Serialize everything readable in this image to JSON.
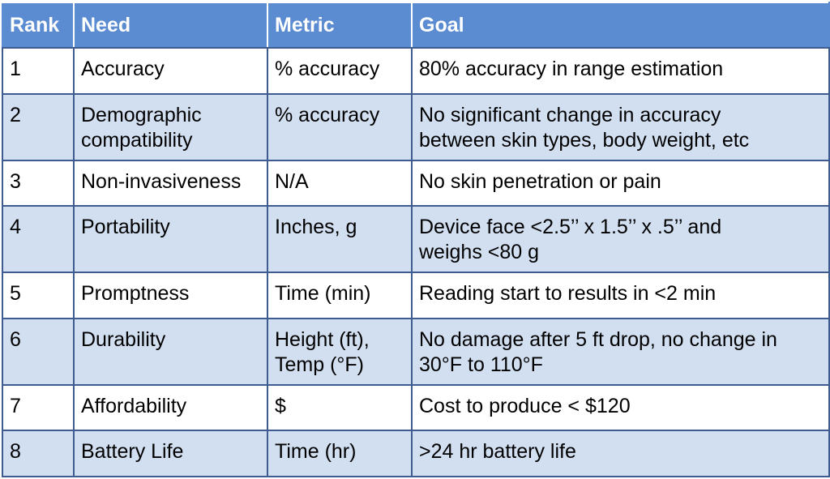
{
  "headers": {
    "rank": "Rank",
    "need": "Need",
    "metric": "Metric",
    "goal": "Goal"
  },
  "rows": [
    {
      "rank": "1",
      "need": "Accuracy",
      "metric": "% accuracy",
      "goal": "80% accuracy in range estimation"
    },
    {
      "rank": "2",
      "need": "Demographic\ncompatibility",
      "metric": "% accuracy",
      "goal": "No significant change in accuracy\nbetween skin types, body weight, etc"
    },
    {
      "rank": "3",
      "need": "Non-invasiveness",
      "metric": "N/A",
      "goal": "No skin penetration or pain"
    },
    {
      "rank": "4",
      "need": "Portability",
      "metric": "Inches, g",
      "goal": "Device face <2.5’’ x  1.5’’ x .5’’ and\nweighs <80 g"
    },
    {
      "rank": "5",
      "need": "Promptness",
      "metric": "Time (min)",
      "goal": "Reading start to results in <2 min"
    },
    {
      "rank": "6",
      "need": "Durability",
      "metric": "Height (ft),\nTemp (°F)",
      "goal": "No damage after 5 ft drop, no change in\n30°F to 110°F"
    },
    {
      "rank": "7",
      "need": "Affordability",
      "metric": "$",
      "goal": "Cost to produce < $120"
    },
    {
      "rank": "8",
      "need": "Battery Life",
      "metric": "Time (hr)",
      "goal": ">24 hr battery life"
    }
  ],
  "colors": {
    "header_bg": "#5b8bd0",
    "row_alt_bg": "#d2dff0",
    "border": "#3e5c8f"
  }
}
